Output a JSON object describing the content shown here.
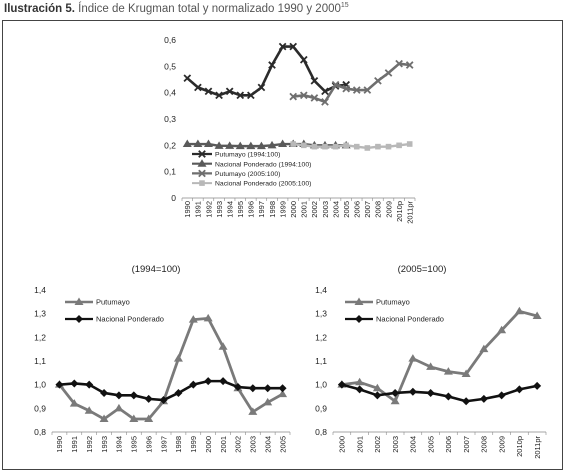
{
  "caption": {
    "label": "Ilustración 5.",
    "text": " Índice de Krugman total y normalizado 1990 y 2000",
    "footnote": "15"
  },
  "colors": {
    "putumayo_1994": "#2b2b2b",
    "nacional_1994": "#5a5a5a",
    "putumayo_2005": "#6f6f6f",
    "nacional_2005": "#b8b8b8",
    "putumayo": "#7a7a7a",
    "nacional": "#111111"
  },
  "chart_data": [
    {
      "type": "line",
      "title": "",
      "categories": [
        "1990",
        "1991",
        "1992",
        "1993",
        "1994",
        "1995",
        "1996",
        "1997",
        "1998",
        "1999",
        "2000",
        "2001",
        "2002",
        "2003",
        "2004",
        "2005",
        "2006",
        "2007",
        "2008",
        "2009",
        "2010p",
        "2011pr"
      ],
      "ylim": [
        0,
        0.6
      ],
      "yticks": [
        "0",
        "0,1",
        "0,2",
        "0,3",
        "0,4",
        "0,5",
        "0,6"
      ],
      "legend_position": "left-bottom",
      "series": [
        {
          "name": "Putumayo (1994:100)",
          "values": [
            0.455,
            0.42,
            0.405,
            0.39,
            0.405,
            0.39,
            0.39,
            0.42,
            0.505,
            0.575,
            0.575,
            0.525,
            0.445,
            0.405,
            0.425,
            0.43,
            null,
            null,
            null,
            null,
            null,
            null
          ]
        },
        {
          "name": "Nacional Ponderado (1994:100)",
          "values": [
            0.205,
            0.205,
            0.205,
            0.198,
            0.198,
            0.197,
            0.197,
            0.197,
            0.2,
            0.205,
            0.205,
            0.205,
            0.2,
            0.2,
            0.2,
            0.2,
            null,
            null,
            null,
            null,
            null,
            null
          ]
        },
        {
          "name": "Putumayo (2005:100)",
          "values": [
            null,
            null,
            null,
            null,
            null,
            null,
            null,
            null,
            null,
            null,
            0.385,
            0.39,
            0.38,
            0.365,
            0.43,
            0.415,
            0.41,
            0.41,
            0.445,
            0.475,
            0.51,
            0.505
          ]
        },
        {
          "name": "Nacional Ponderado (2005:100)",
          "values": [
            null,
            null,
            null,
            null,
            null,
            null,
            null,
            null,
            null,
            null,
            0.205,
            0.2,
            0.195,
            0.195,
            0.195,
            0.2,
            0.195,
            0.19,
            0.195,
            0.195,
            0.2,
            0.205
          ]
        }
      ]
    },
    {
      "type": "line",
      "title": "(1994=100)",
      "categories": [
        "1990",
        "1991",
        "1992",
        "1993",
        "1994",
        "1995",
        "1996",
        "1997",
        "1998",
        "1999",
        "2000",
        "2001",
        "2002",
        "2003",
        "2004",
        "2005"
      ],
      "ylim": [
        0.8,
        1.4
      ],
      "yticks": [
        "0,8",
        "0,9",
        "1,0",
        "1,1",
        "1,2",
        "1,3",
        "1,4"
      ],
      "legend_position": "top-left",
      "series": [
        {
          "name": "Putumayo",
          "values": [
            1.0,
            0.92,
            0.89,
            0.855,
            0.9,
            0.855,
            0.855,
            0.93,
            1.11,
            1.275,
            1.28,
            1.16,
            0.985,
            0.885,
            0.925,
            0.96
          ]
        },
        {
          "name": "Nacional Ponderado",
          "values": [
            1.0,
            1.005,
            1.0,
            0.965,
            0.955,
            0.955,
            0.94,
            0.935,
            0.965,
            1.0,
            1.015,
            1.015,
            0.99,
            0.985,
            0.985,
            0.985
          ]
        }
      ]
    },
    {
      "type": "line",
      "title": "(2005=100)",
      "categories": [
        "2000",
        "2001",
        "2002",
        "2003",
        "2004",
        "2005",
        "2006",
        "2007",
        "2008",
        "2009",
        "2010p",
        "2011pr"
      ],
      "ylim": [
        0.8,
        1.4
      ],
      "yticks": [
        "0,8",
        "0,9",
        "1,0",
        "1,1",
        "1,2",
        "1,3",
        "1,4"
      ],
      "legend_position": "top-left",
      "series": [
        {
          "name": "Putumayo",
          "values": [
            1.0,
            1.01,
            0.985,
            0.93,
            1.11,
            1.075,
            1.055,
            1.045,
            1.15,
            1.23,
            1.31,
            1.29
          ]
        },
        {
          "name": "Nacional Ponderado",
          "values": [
            1.0,
            0.98,
            0.955,
            0.965,
            0.97,
            0.965,
            0.95,
            0.93,
            0.94,
            0.955,
            0.98,
            0.995
          ]
        }
      ]
    }
  ]
}
